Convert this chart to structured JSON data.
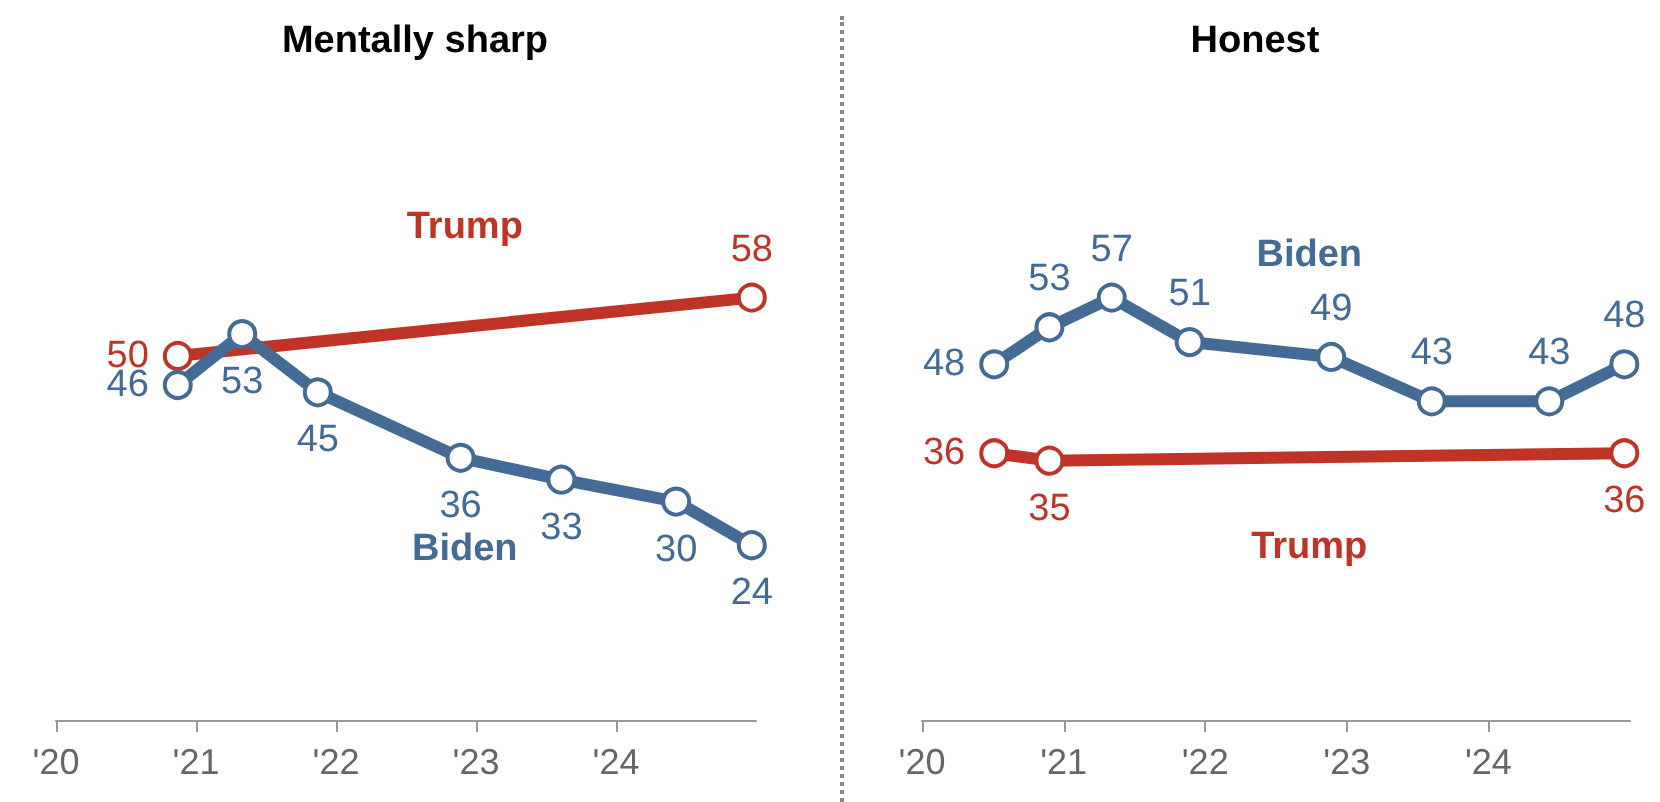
{
  "chart_data": [
    {
      "type": "line",
      "title": "Mentally sharp",
      "xlim": [
        2020,
        2025
      ],
      "xticks": [
        {
          "value": 2020,
          "label": "'20"
        },
        {
          "value": 2021,
          "label": "'21"
        },
        {
          "value": 2022,
          "label": "'22"
        },
        {
          "value": 2023,
          "label": "'23"
        },
        {
          "value": 2024,
          "label": "'24"
        }
      ],
      "tick_labels": "x",
      "data_labels": true,
      "legend": false,
      "grid": false,
      "marker": "circle",
      "series": [
        {
          "name": "Trump",
          "color": "#bf3427",
          "x": [
            2020.87,
            2024.97
          ],
          "values": [
            50,
            58
          ]
        },
        {
          "name": "Biden",
          "color": "#436b95",
          "x": [
            2020.87,
            2021.33,
            2021.87,
            2022.89,
            2023.61,
            2024.43,
            2024.97
          ],
          "values": [
            46,
            53,
            45,
            36,
            33,
            30,
            24
          ]
        }
      ]
    },
    {
      "type": "line",
      "title": "Honest",
      "xlim": [
        2020,
        2025
      ],
      "xticks": [
        {
          "value": 2020,
          "label": "'20"
        },
        {
          "value": 2021,
          "label": "'21"
        },
        {
          "value": 2022,
          "label": "'22"
        },
        {
          "value": 2023,
          "label": "'23"
        },
        {
          "value": 2024,
          "label": "'24"
        }
      ],
      "tick_labels": "x",
      "data_labels": true,
      "legend": false,
      "grid": false,
      "marker": "circle",
      "series": [
        {
          "name": "Biden",
          "color": "#436b95",
          "x": [
            2020.51,
            2020.9,
            2021.34,
            2021.89,
            2022.89,
            2023.6,
            2024.43,
            2024.96
          ],
          "values": [
            48,
            53,
            57,
            51,
            49,
            43,
            43,
            48
          ]
        },
        {
          "name": "Trump",
          "color": "#bf3427",
          "x": [
            2020.51,
            2020.9,
            2024.96
          ],
          "values": [
            36,
            35,
            36
          ]
        }
      ]
    }
  ]
}
